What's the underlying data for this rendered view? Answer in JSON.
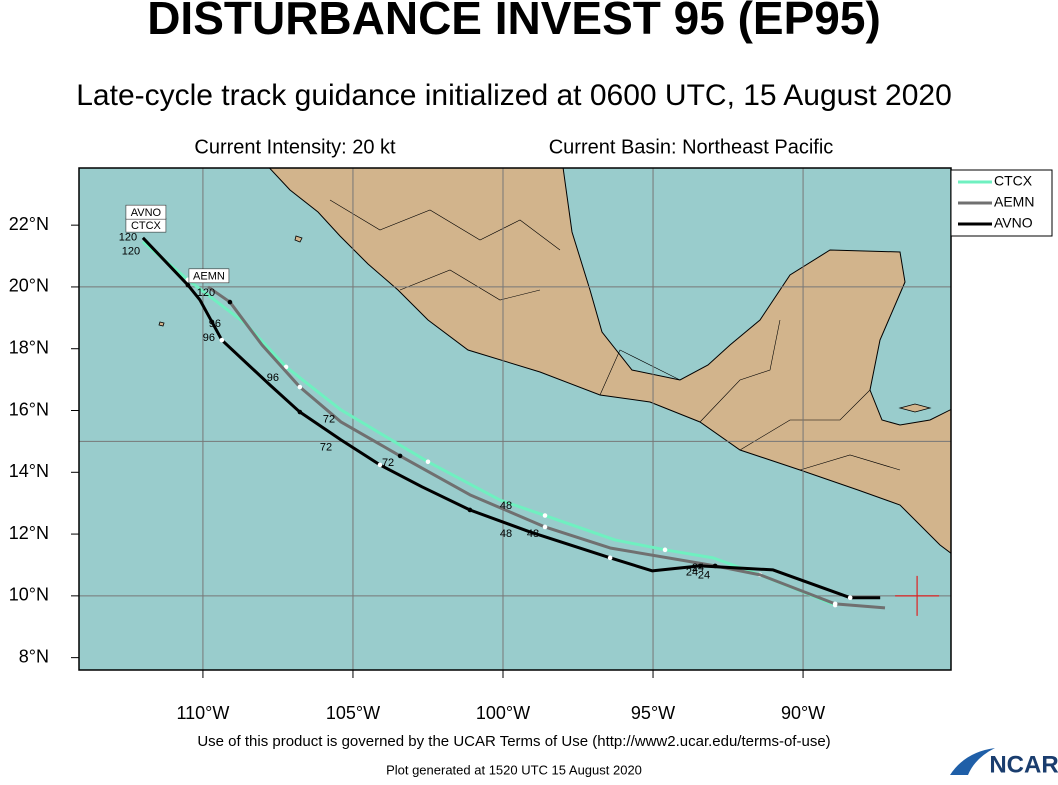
{
  "header": {
    "title": "DISTURBANCE INVEST 95 (EP95)",
    "subtitle": "Late-cycle track guidance initialized at 0600 UTC, 15 August 2020",
    "intensity": "Current Intensity: 20 kt",
    "basin": "Current Basin: Northeast Pacific"
  },
  "map": {
    "lonlim": [
      -114.13,
      -85.07
    ],
    "latlim": [
      7.6,
      23.85
    ],
    "lon_ticks": [
      {
        "value": -110,
        "label": "110°W"
      },
      {
        "value": -105,
        "label": "105°W"
      },
      {
        "value": -100,
        "label": "100°W"
      },
      {
        "value": -95,
        "label": "95°W"
      },
      {
        "value": -90,
        "label": "90°W"
      }
    ],
    "lat_ticks": [
      {
        "value": 8,
        "label": "8°N"
      },
      {
        "value": 10,
        "label": "10°N"
      },
      {
        "value": 12,
        "label": "12°N"
      },
      {
        "value": 14,
        "label": "14°N"
      },
      {
        "value": 16,
        "label": "16°N"
      },
      {
        "value": 18,
        "label": "18°N"
      },
      {
        "value": 20,
        "label": "20°N"
      },
      {
        "value": 22,
        "label": "22°N"
      }
    ],
    "grid_lons": [
      -110,
      -105,
      -100,
      -95,
      -90
    ],
    "grid_lats": [
      10,
      15,
      20
    ],
    "current_position": {
      "lon": -86.2,
      "lat": 10.0
    },
    "tracks": [
      {
        "name": "CTCX",
        "color": "#6ff0c0",
        "lon": [
          -112.0,
          -110.5,
          -108.6,
          -107.23,
          -105.4,
          -102.5,
          -100.1,
          -98.6,
          -96.27,
          -94.6,
          -93.0,
          -91.43,
          -90.0,
          -88.93
        ],
        "lat": [
          21.46,
          20.23,
          18.83,
          17.41,
          16.02,
          14.34,
          13.1,
          12.6,
          11.81,
          11.49,
          11.23,
          10.68,
          10.13,
          9.7
        ],
        "tag": {
          "lon": -111.9,
          "lat": 22.0
        }
      },
      {
        "name": "AEMN",
        "color": "#707070",
        "lon": [
          -109.83,
          -109.1,
          -108.03,
          -106.77,
          -105.4,
          -103.43,
          -101.1,
          -98.6,
          -96.43,
          -92.93,
          -91.43,
          -88.93,
          -87.27
        ],
        "lat": [
          20.0,
          19.51,
          18.12,
          16.76,
          15.63,
          14.53,
          13.27,
          12.23,
          11.55,
          10.97,
          10.68,
          9.74,
          9.61
        ],
        "tag": {
          "lon": -109.8,
          "lat": 20.36
        }
      },
      {
        "name": "AVNO",
        "color": "#000000",
        "lon": [
          -112.0,
          -110.5,
          -110.1,
          -109.37,
          -107.77,
          -106.77,
          -105.4,
          -104.1,
          -102.7,
          -101.1,
          -99.1,
          -96.43,
          -95.03,
          -93.43,
          -91.0,
          -88.43,
          -87.43
        ],
        "lat": [
          21.59,
          20.06,
          19.58,
          18.28,
          16.83,
          15.95,
          15.05,
          14.24,
          13.53,
          12.78,
          12.07,
          11.23,
          10.81,
          10.97,
          10.84,
          9.94,
          9.94
        ],
        "tag": {
          "lon": -111.9,
          "lat": 22.42
        }
      }
    ],
    "hour_labels": [
      {
        "value": 120,
        "lon": -112.5,
        "lat": 21.6
      },
      {
        "value": 120,
        "lon": -112.4,
        "lat": 21.15
      },
      {
        "value": 120,
        "lon": -109.9,
        "lat": 19.8
      },
      {
        "value": 96,
        "lon": -109.6,
        "lat": 18.8
      },
      {
        "value": 96,
        "lon": -109.8,
        "lat": 18.35
      },
      {
        "value": 96,
        "lon": -107.67,
        "lat": 17.05
      },
      {
        "value": 72,
        "lon": -105.8,
        "lat": 15.7
      },
      {
        "value": 72,
        "lon": -105.9,
        "lat": 14.8
      },
      {
        "value": 72,
        "lon": -103.83,
        "lat": 14.3
      },
      {
        "value": 48,
        "lon": -99.9,
        "lat": 12.9
      },
      {
        "value": 48,
        "lon": -99.9,
        "lat": 12.0
      },
      {
        "value": 48,
        "lon": -99.0,
        "lat": 12.0
      },
      {
        "value": 24,
        "lon": -93.5,
        "lat": 10.9
      },
      {
        "value": 24,
        "lon": -93.7,
        "lat": 10.75
      },
      {
        "value": 24,
        "lon": -93.3,
        "lat": 10.65
      }
    ]
  },
  "footer": {
    "terms": "Use of this product is governed by the UCAR Terms of Use (http://www2.ucar.edu/terms-of-use)",
    "generated": "Plot generated at 1520 UTC   15 August 2020",
    "logo": "NCAR"
  }
}
